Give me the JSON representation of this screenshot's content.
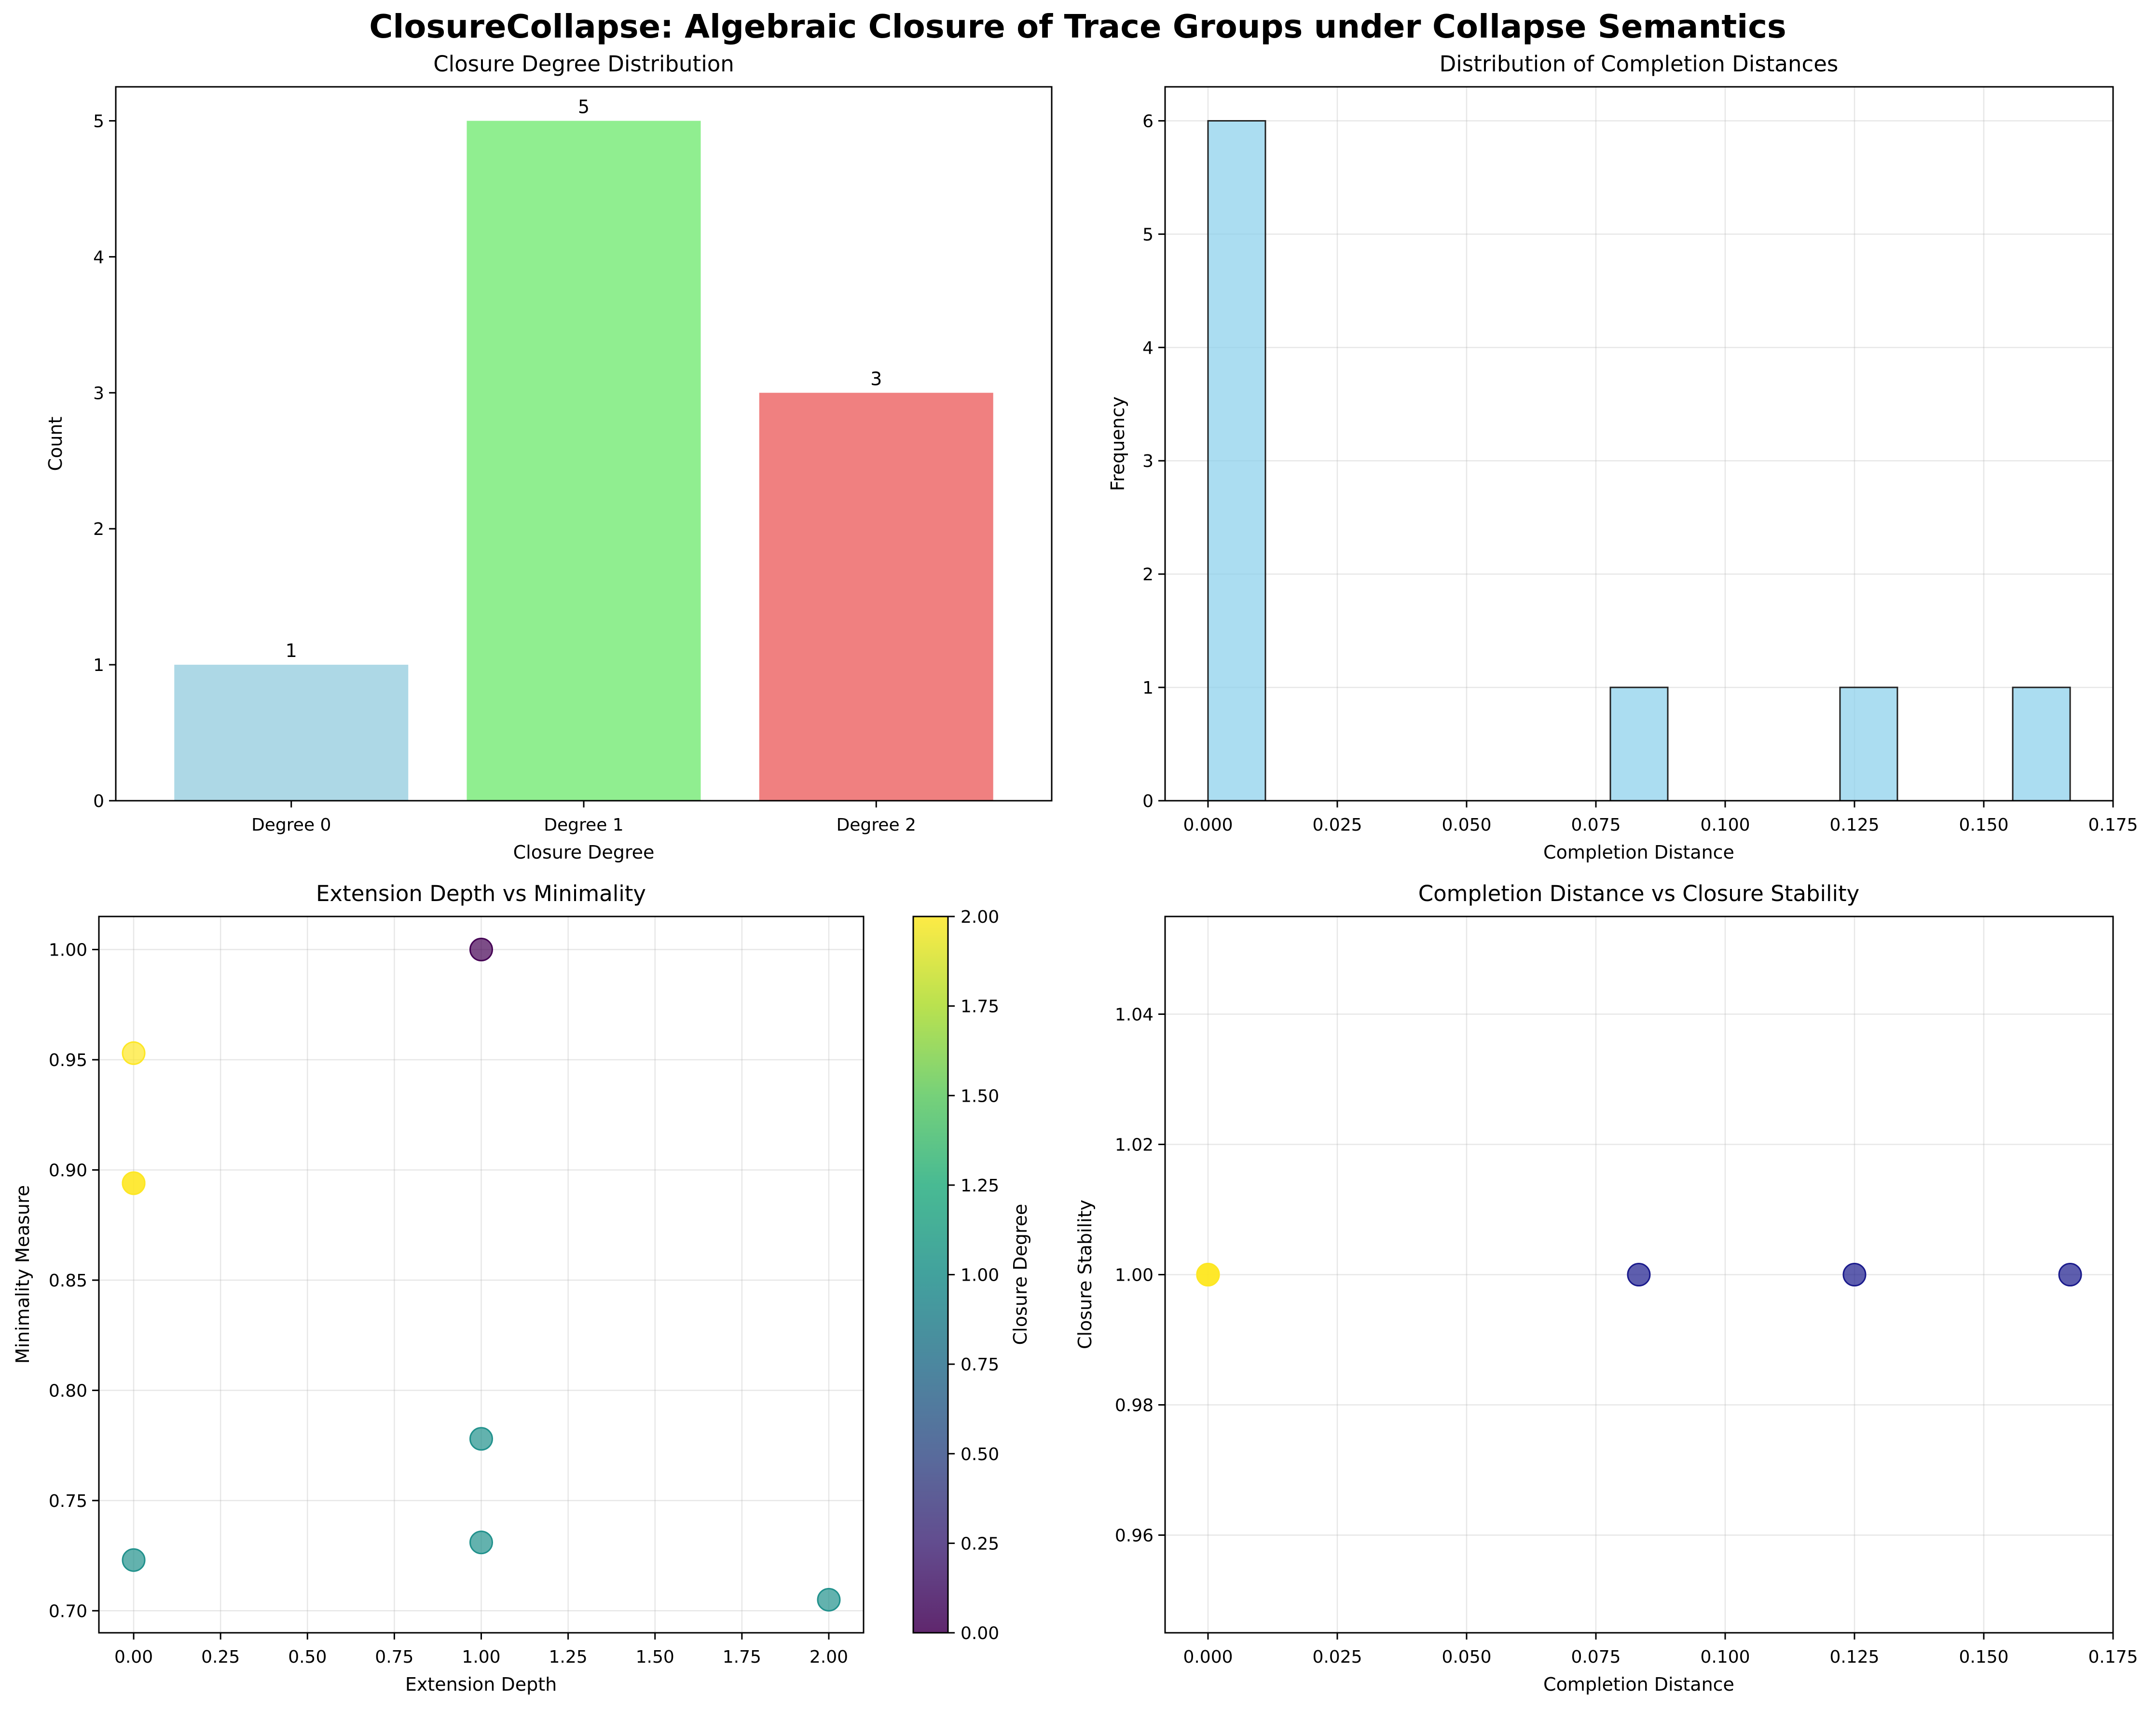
{
  "title": "ClosureCollapse: Algebraic Closure of Trace Groups under Collapse Semantics",
  "chart_data": [
    {
      "id": "p1",
      "type": "bar",
      "title": "Closure Degree Distribution",
      "xlabel": "Closure Degree",
      "ylabel": "Count",
      "categories": [
        "Degree 0",
        "Degree 1",
        "Degree 2"
      ],
      "values": [
        1,
        5,
        3
      ],
      "colors": [
        "#add8e6",
        "#90ee90",
        "#f08080"
      ],
      "ylim": [
        0,
        5.25
      ],
      "yticks": [
        0,
        1,
        2,
        3,
        4,
        5
      ],
      "grid": false
    },
    {
      "id": "p2",
      "type": "bar",
      "subtype": "histogram",
      "title": "Distribution of Completion Distances",
      "xlabel": "Completion Distance",
      "ylabel": "Frequency",
      "bins": [
        {
          "x0": 0.0,
          "x1": 0.0111,
          "count": 6
        },
        {
          "x0": 0.0778,
          "x1": 0.0889,
          "count": 1
        },
        {
          "x0": 0.1222,
          "x1": 0.1333,
          "count": 1
        },
        {
          "x0": 0.1556,
          "x1": 0.1667,
          "count": 1
        }
      ],
      "color": "#87ceeb",
      "xlim": [
        -0.0083,
        0.175
      ],
      "ylim": [
        0,
        6.3
      ],
      "xticks": [
        0.0,
        0.025,
        0.05,
        0.075,
        0.1,
        0.125,
        0.15,
        0.175
      ],
      "xticklabels": [
        "0.000",
        "0.025",
        "0.050",
        "0.075",
        "0.100",
        "0.125",
        "0.150",
        "0.175"
      ],
      "yticks": [
        0,
        1,
        2,
        3,
        4,
        5,
        6
      ],
      "grid": true
    },
    {
      "id": "p3",
      "type": "scatter",
      "title": "Extension Depth vs Minimality",
      "xlabel": "Extension Depth",
      "ylabel": "Minimality Measure",
      "points": [
        {
          "x": 1,
          "y": 1.0,
          "c": 0
        },
        {
          "x": 0,
          "y": 0.953,
          "c": 2
        },
        {
          "x": 0,
          "y": 0.894,
          "c": 2
        },
        {
          "x": 0,
          "y": 0.894,
          "c": 2
        },
        {
          "x": 1,
          "y": 0.778,
          "c": 1
        },
        {
          "x": 1,
          "y": 0.731,
          "c": 1
        },
        {
          "x": 0,
          "y": 0.723,
          "c": 1
        },
        {
          "x": 2,
          "y": 0.705,
          "c": 1
        }
      ],
      "xlim": [
        -0.1,
        2.1
      ],
      "ylim": [
        0.69,
        1.015
      ],
      "xticks": [
        0.0,
        0.25,
        0.5,
        0.75,
        1.0,
        1.25,
        1.5,
        1.75,
        2.0
      ],
      "xticklabels": [
        "0.00",
        "0.25",
        "0.50",
        "0.75",
        "1.00",
        "1.25",
        "1.50",
        "1.75",
        "2.00"
      ],
      "yticks": [
        0.7,
        0.75,
        0.8,
        0.85,
        0.9,
        0.95,
        1.0
      ],
      "yticklabels": [
        "0.70",
        "0.75",
        "0.80",
        "0.85",
        "0.90",
        "0.95",
        "1.00"
      ],
      "colormap": "viridis",
      "colorbar": {
        "label": "Closure Degree",
        "min": 0,
        "max": 2,
        "ticks": [
          0,
          0.25,
          0.5,
          0.75,
          1.0,
          1.25,
          1.5,
          1.75,
          2.0
        ],
        "ticklabels": [
          "0.00",
          "0.25",
          "0.50",
          "0.75",
          "1.00",
          "1.25",
          "1.50",
          "1.75",
          "2.00"
        ]
      },
      "grid": true
    },
    {
      "id": "p4",
      "type": "scatter",
      "title": "Completion Distance vs Closure Stability",
      "xlabel": "Completion Distance",
      "ylabel": "Closure Stability",
      "points": [
        {
          "x": 0.0,
          "y": 1.0,
          "color": "#fde725"
        },
        {
          "x": 0.0,
          "y": 1.0,
          "color": "#fde725"
        },
        {
          "x": 0.0,
          "y": 1.0,
          "color": "#fde725"
        },
        {
          "x": 0.0833,
          "y": 1.0,
          "color": "#1a1a8c"
        },
        {
          "x": 0.125,
          "y": 1.0,
          "color": "#1a1a8c"
        },
        {
          "x": 0.1667,
          "y": 1.0,
          "color": "#1a1a8c"
        }
      ],
      "xlim": [
        -0.0083,
        0.175
      ],
      "ylim": [
        0.945,
        1.055
      ],
      "xticks": [
        0.0,
        0.025,
        0.05,
        0.075,
        0.1,
        0.125,
        0.15,
        0.175
      ],
      "xticklabels": [
        "0.000",
        "0.025",
        "0.050",
        "0.075",
        "0.100",
        "0.125",
        "0.150",
        "0.175"
      ],
      "yticks": [
        0.96,
        0.98,
        1.0,
        1.02,
        1.04
      ],
      "yticklabels": [
        "0.96",
        "0.98",
        "1.00",
        "1.02",
        "1.04"
      ],
      "grid": true
    }
  ]
}
